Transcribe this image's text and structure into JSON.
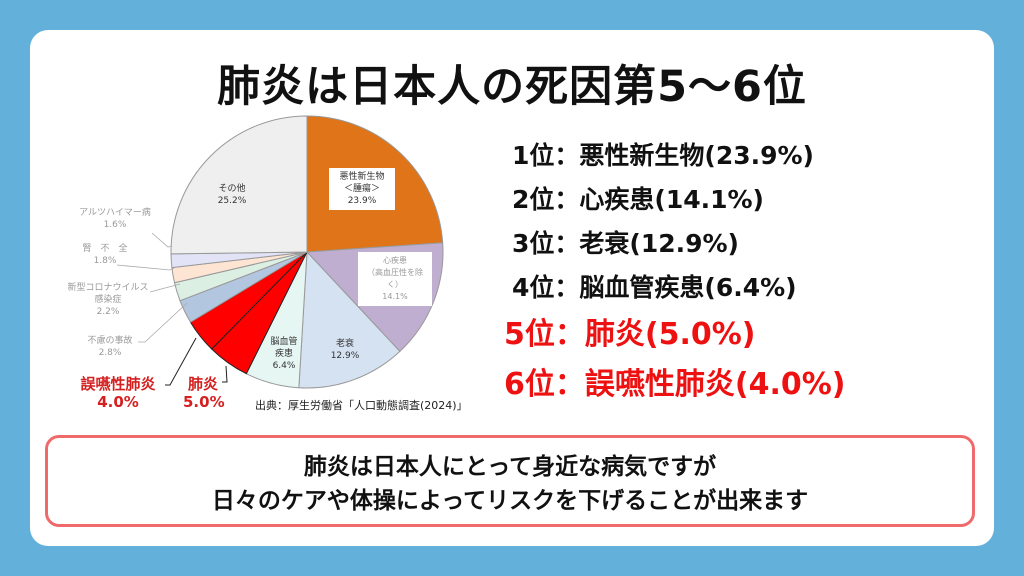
{
  "title": "肺炎は日本人の死因第5～6位",
  "chart_data": {
    "type": "pie",
    "start": "top",
    "direction": "clockwise",
    "slices": [
      {
        "label": "悪性新生物＜腫瘍＞",
        "value": 23.9,
        "value_label": "23.9%",
        "color": "#e07418"
      },
      {
        "label": "心疾患（高血圧性を除く）",
        "value": 14.1,
        "value_label": "14.1%",
        "color": "#c0aed0"
      },
      {
        "label": "老衰",
        "value": 12.9,
        "value_label": "12.9%",
        "color": "#d5e2f1"
      },
      {
        "label": "脳血管疾患",
        "value": 6.4,
        "value_label": "6.4%",
        "color": "#e6f6f3"
      },
      {
        "label": "肺炎",
        "value": 5.0,
        "value_label": "5.0%",
        "color": "#ff0000"
      },
      {
        "label": "誤嚥性肺炎",
        "value": 4.0,
        "value_label": "4.0%",
        "color": "#ff0000"
      },
      {
        "label": "不慮の事故",
        "value": 2.8,
        "value_label": "2.8%",
        "color": "#b3c6df"
      },
      {
        "label": "新型コロナウイルス感染症",
        "value": 2.2,
        "value_label": "2.2%",
        "color": "#dcefe3"
      },
      {
        "label": "腎不全",
        "value": 1.8,
        "value_label": "1.8%",
        "color": "#fde4d3"
      },
      {
        "label": "アルツハイマー病",
        "value": 1.6,
        "value_label": "1.6%",
        "color": "#e3e3f7"
      },
      {
        "label": "その他",
        "value": 25.2,
        "value_label": "25.2%",
        "color": "#efefef"
      }
    ],
    "labels": {
      "cancer_1": "悪性新生物",
      "cancer_2": "＜腫瘍＞",
      "heart_1": "心疾患",
      "heart_2": "（高血圧性を除く）",
      "senility": "老衰",
      "stroke_1": "脳血管",
      "stroke_2": "疾患",
      "pneumonia": "肺炎",
      "aspiration": "誤嚥性肺炎",
      "accident": "不慮の事故",
      "covid_1": "新型コロナウイルス",
      "covid_2": "感染症",
      "kidney": "腎　不　全",
      "alz": "アルツハイマー病",
      "other": "その他"
    },
    "source": "出典：厚生労働省「人口動態調査(2024)」"
  },
  "ranks": [
    "1位：悪性新生物(23.9%)",
    "2位：心疾患(14.1%)",
    "3位：老衰(12.9%)",
    "4位：脳血管疾患(6.4%)",
    "5位：肺炎(5.0%)",
    "6位：誤嚥性肺炎(4.0%)"
  ],
  "message": {
    "line1": "肺炎は日本人にとって身近な病気ですが",
    "line2": "日々のケアや体操によってリスクを下げることが出来ます"
  }
}
